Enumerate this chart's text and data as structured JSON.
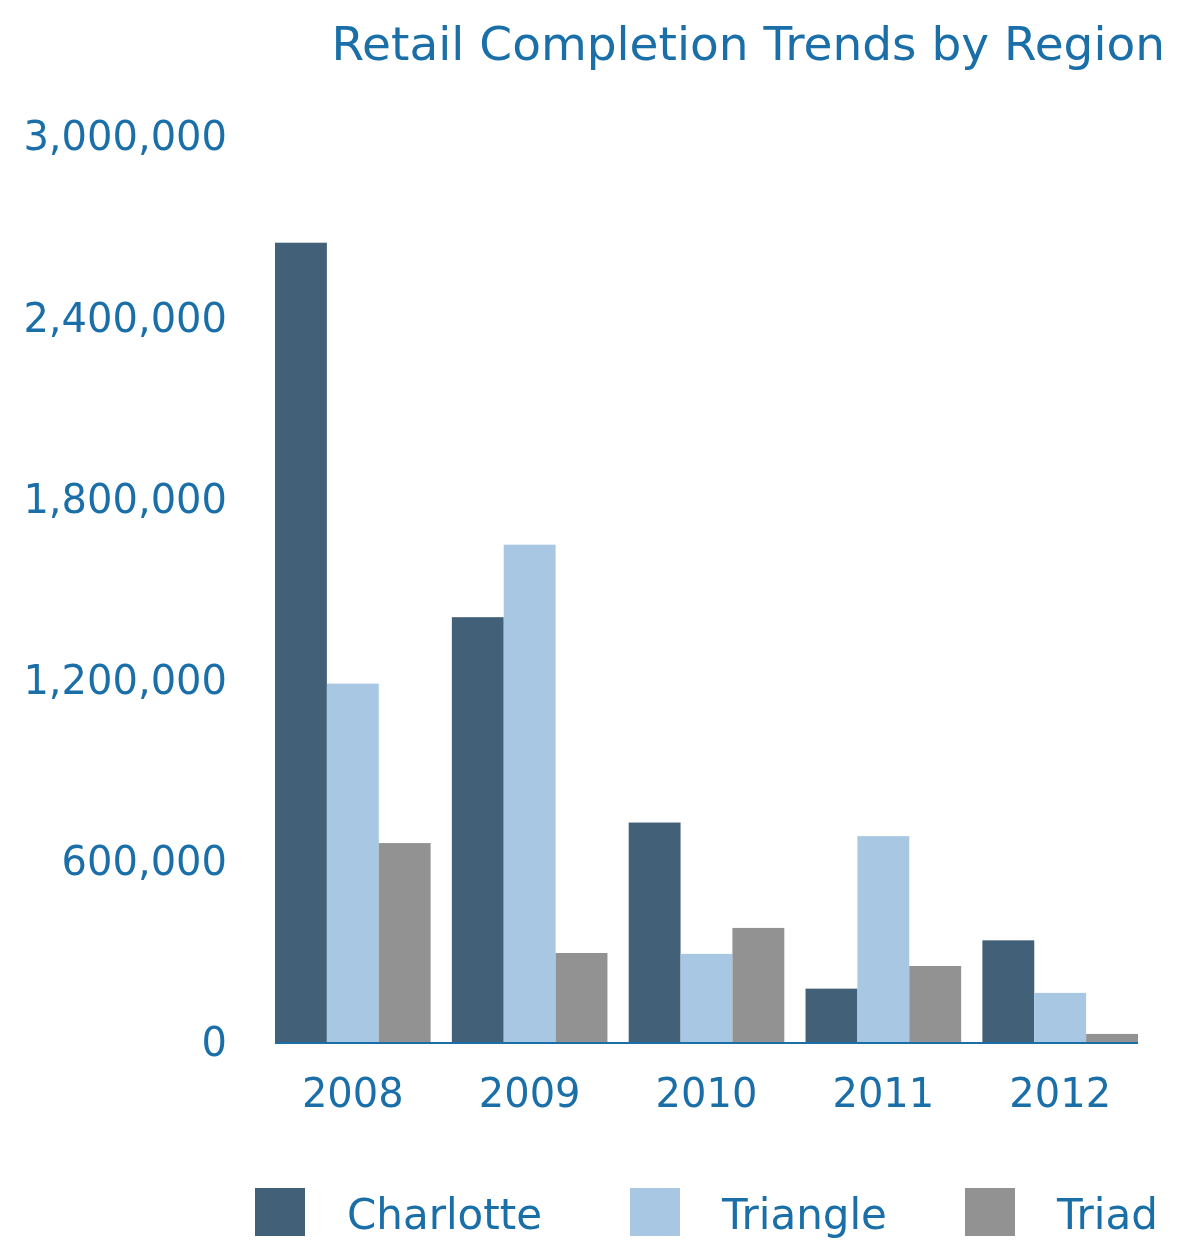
{
  "chart_data": {
    "type": "bar",
    "title": "Retail Completion Trends by Region",
    "categories": [
      "2008",
      "2009",
      "2010",
      "2011",
      "2012"
    ],
    "series": [
      {
        "name": "Charlotte",
        "color": "#426179",
        "values": [
          2650000,
          1410000,
          730000,
          180000,
          340000
        ]
      },
      {
        "name": "Triangle",
        "color": "#a7c7e2",
        "values": [
          1190000,
          1650000,
          295000,
          685000,
          166000
        ]
      },
      {
        "name": "Triad",
        "color": "#929292",
        "values": [
          662000,
          298000,
          381000,
          255000,
          30000
        ]
      }
    ],
    "ylim": [
      0,
      3000000
    ],
    "yticks": [
      0,
      {
        "value": 600000,
        "label": "600,000"
      },
      {
        "value": 1200000,
        "label": "1,200,000"
      },
      {
        "value": 1800000,
        "label": "1,800,000"
      },
      {
        "value": 2400000,
        "label": "2,400,000"
      },
      {
        "value": 3000000,
        "label": "3,000,000"
      }
    ],
    "grid": false,
    "legend": "bottom"
  }
}
